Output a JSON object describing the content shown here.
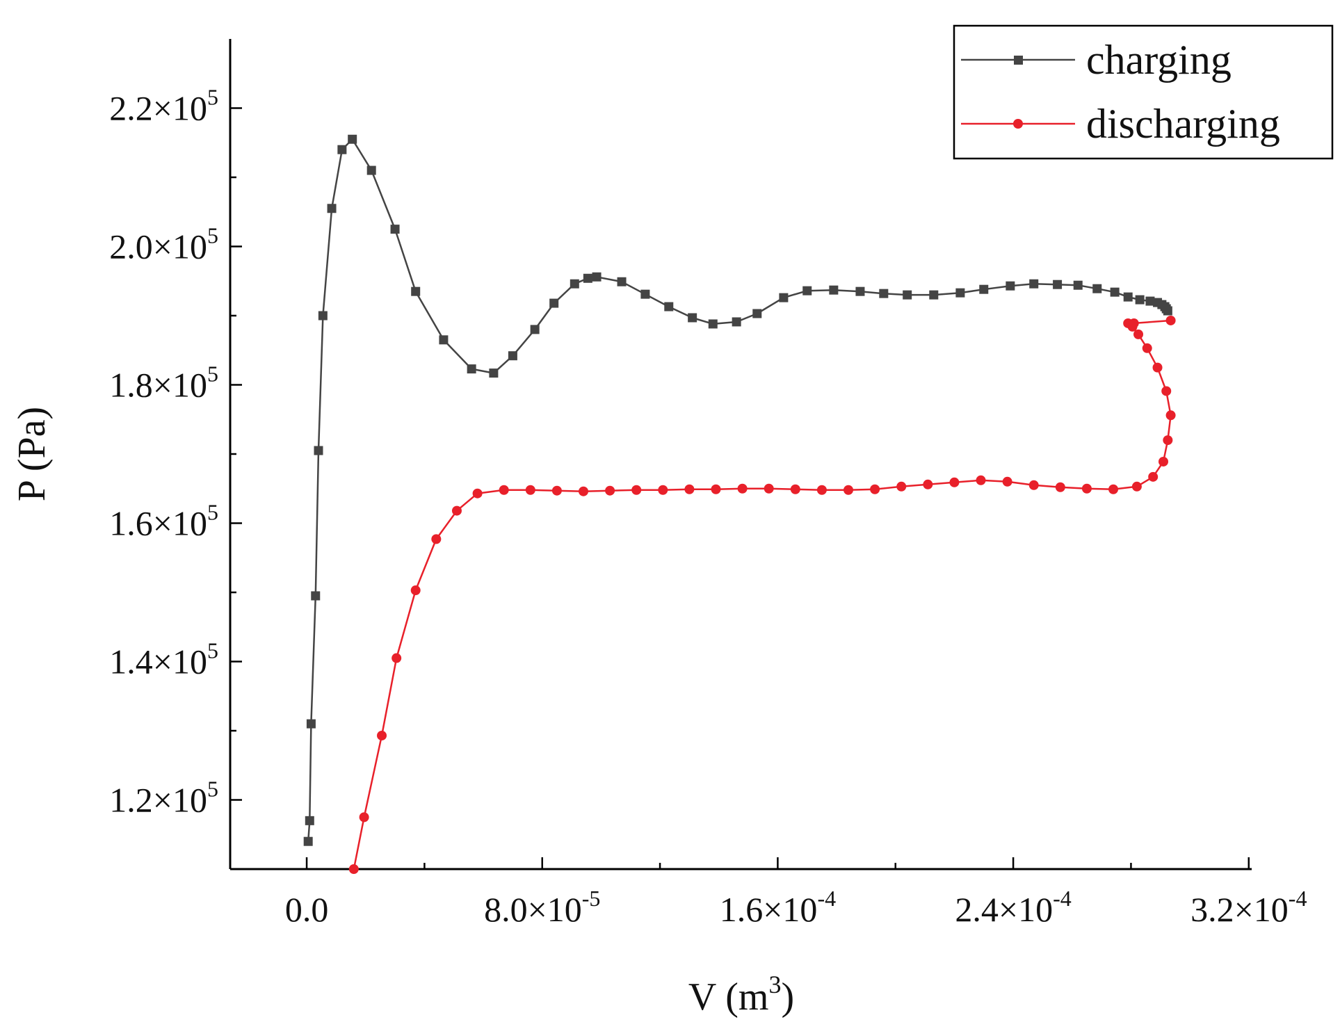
{
  "chart_data": {
    "type": "line",
    "title": "",
    "xlabel": {
      "base": "V (m",
      "sup": "3",
      "tail": ")"
    },
    "ylabel": "P (Pa)",
    "xlim": [
      -2.6e-05,
      0.000321
    ],
    "ylim": [
      110000,
      230000
    ],
    "grid": false,
    "legend_position": "top-right",
    "x_ticks": [
      {
        "value": 0,
        "mantissa": "0.0",
        "exp": ""
      },
      {
        "value": 8e-05,
        "mantissa": "8.0×10",
        "exp": "-5"
      },
      {
        "value": 0.00016,
        "mantissa": "1.6×10",
        "exp": "-4"
      },
      {
        "value": 0.00024,
        "mantissa": "2.4×10",
        "exp": "-4"
      },
      {
        "value": 0.00032,
        "mantissa": "3.2×10",
        "exp": "-4"
      }
    ],
    "x_minor_ticks": [
      4e-05,
      0.00012,
      0.0002,
      0.00028
    ],
    "y_ticks": [
      {
        "value": 120000,
        "mantissa": "1.2×10",
        "exp": "5"
      },
      {
        "value": 140000,
        "mantissa": "1.4×10",
        "exp": "5"
      },
      {
        "value": 160000,
        "mantissa": "1.6×10",
        "exp": "5"
      },
      {
        "value": 180000,
        "mantissa": "1.8×10",
        "exp": "5"
      },
      {
        "value": 200000,
        "mantissa": "2.0×10",
        "exp": "5"
      },
      {
        "value": 220000,
        "mantissa": "2.2×10",
        "exp": "5"
      }
    ],
    "y_minor_ticks": [
      110000,
      130000,
      150000,
      170000,
      190000,
      210000
    ],
    "series": [
      {
        "name": "charging",
        "color": "#444444",
        "marker": "square",
        "x": [
          5e-07,
          1e-06,
          1.5e-06,
          3e-06,
          4e-06,
          5.5e-06,
          8.5e-06,
          1.2e-05,
          1.55e-05,
          2.2e-05,
          3e-05,
          3.7e-05,
          4.65e-05,
          5.6e-05,
          6.35e-05,
          7e-05,
          7.75e-05,
          8.4e-05,
          9.1e-05,
          9.55e-05,
          9.85e-05,
          0.000107,
          0.000115,
          0.000123,
          0.000131,
          0.000138,
          0.000146,
          0.000153,
          0.000162,
          0.00017,
          0.000179,
          0.000188,
          0.000196,
          0.000204,
          0.000213,
          0.000222,
          0.00023,
          0.000239,
          0.000247,
          0.000255,
          0.000262,
          0.0002685,
          0.0002745,
          0.000279,
          0.000283,
          0.0002865,
          0.000289,
          0.0002905,
          0.0002915,
          0.000292,
          0.0002925
        ],
        "y": [
          114000,
          117000,
          131000,
          149500,
          170500,
          190000,
          205500,
          214000,
          215500,
          211000,
          202500,
          193500,
          186500,
          182300,
          181700,
          184200,
          188000,
          191800,
          194600,
          195400,
          195600,
          194900,
          193100,
          191300,
          189700,
          188800,
          189100,
          190300,
          192600,
          193600,
          193700,
          193500,
          193200,
          193000,
          193000,
          193300,
          193800,
          194300,
          194600,
          194500,
          194400,
          193900,
          193400,
          192700,
          192300,
          192100,
          191900,
          191600,
          191300,
          191000,
          190700
        ]
      },
      {
        "name": "discharging",
        "color": "#e8202a",
        "marker": "circle",
        "x": [
          1.6e-05,
          1.95e-05,
          2.55e-05,
          3.05e-05,
          3.7e-05,
          4.4e-05,
          5.1e-05,
          5.8e-05,
          6.7e-05,
          7.6e-05,
          8.5e-05,
          9.4e-05,
          0.000103,
          0.000112,
          0.000121,
          0.00013,
          0.000139,
          0.000148,
          0.000157,
          0.000166,
          0.000175,
          0.000184,
          0.000193,
          0.000202,
          0.000211,
          0.00022,
          0.000229,
          0.000238,
          0.000247,
          0.000256,
          0.000265,
          0.000274,
          0.000282,
          0.0002875,
          0.000291,
          0.0002925,
          0.0002935,
          0.000292,
          0.000289,
          0.0002855,
          0.0002825,
          0.0002805,
          0.000279,
          0.000281,
          0.0002935
        ],
        "y": [
          110000,
          117500,
          129300,
          140500,
          150300,
          157700,
          161800,
          164300,
          164800,
          164800,
          164700,
          164600,
          164700,
          164800,
          164800,
          164900,
          164900,
          165000,
          165000,
          164900,
          164800,
          164800,
          164900,
          165300,
          165600,
          165900,
          166200,
          166000,
          165500,
          165200,
          165000,
          164900,
          165300,
          166700,
          168900,
          172000,
          175600,
          179100,
          182500,
          185300,
          187300,
          188400,
          188900,
          188900,
          189300
        ]
      }
    ]
  }
}
